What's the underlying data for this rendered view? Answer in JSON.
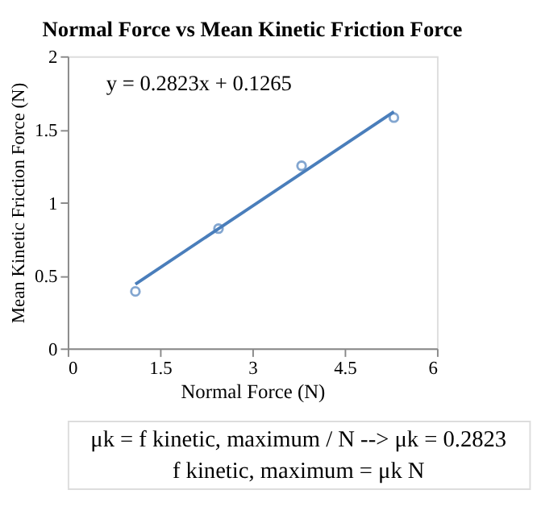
{
  "chart_data": {
    "type": "scatter",
    "title": "Normal Force vs Mean Kinetic Friction Force",
    "xlabel": "Normal Force (N)",
    "ylabel": "Mean Kinetic Friction Force (N)",
    "xlim": [
      0,
      6
    ],
    "xticks": [
      0,
      1.5,
      3,
      4.5,
      6
    ],
    "ylim": [
      0,
      2
    ],
    "yticks": [
      0,
      0.5,
      1,
      1.5,
      2
    ],
    "grid": false,
    "marker": "circle",
    "series": [
      {
        "color": "#4f81bd",
        "x": [
          1.1,
          2.45,
          3.8,
          5.3
        ],
        "values": [
          0.39,
          0.82,
          1.25,
          1.58
        ]
      },
      {
        "type": "line",
        "color": "#4a7ebb",
        "x": [
          1.1,
          5.3
        ],
        "values": [
          0.44,
          1.62
        ],
        "line_style": "solid",
        "marker": "none"
      }
    ],
    "annotations": [
      "y = 0.2823x + 0.1265",
      "μk = f kinetic, maximum / N  --> μk = 0.2823",
      "f kinetic, maximum = μk N"
    ]
  }
}
